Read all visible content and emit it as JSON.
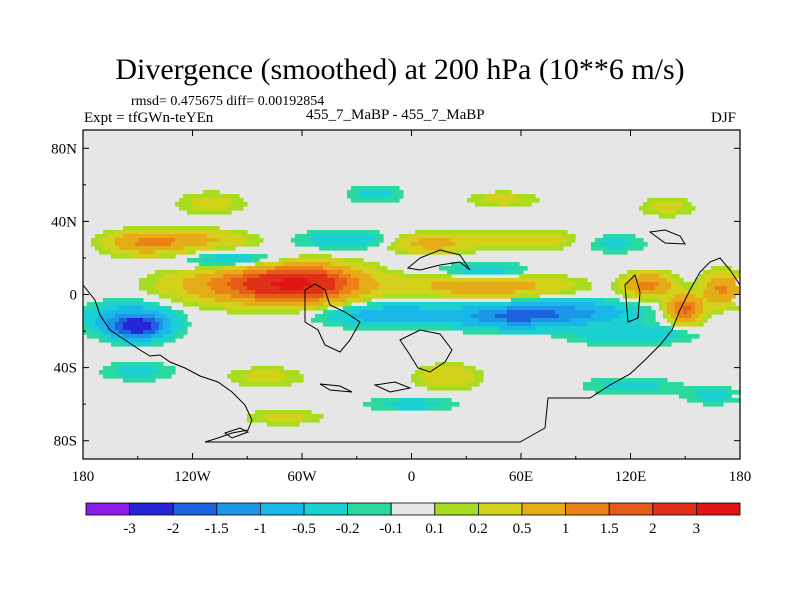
{
  "title": "Divergence (smoothed) at 200 hPa (10**6 m/s)",
  "stats_text": "rmsd= 0.475675 diff= 0.00192854",
  "left_label": "Expt = tfGWn-teYEn",
  "center_label": "455_7_MaBP - 455_7_MaBP",
  "right_label": "DJF",
  "chart_data": {
    "type": "heatmap",
    "projection": "cylindrical-equidistant",
    "variable": "Divergence (smoothed) at 200 hPa",
    "units": "10**6 m/s",
    "xlim": [
      -180,
      180
    ],
    "ylim": [
      -90,
      90
    ],
    "x_ticks": [
      {
        "value": -180,
        "label": "180"
      },
      {
        "value": -120,
        "label": "120W"
      },
      {
        "value": -60,
        "label": "60W"
      },
      {
        "value": 0,
        "label": "0"
      },
      {
        "value": 60,
        "label": "60E"
      },
      {
        "value": 120,
        "label": "120E"
      },
      {
        "value": 180,
        "label": "180"
      }
    ],
    "y_ticks": [
      {
        "value": 80,
        "label": "80N"
      },
      {
        "value": 40,
        "label": "40N"
      },
      {
        "value": 0,
        "label": "0"
      },
      {
        "value": -40,
        "label": "40S"
      },
      {
        "value": -80,
        "label": "80S"
      }
    ],
    "levels": [
      "-3",
      "-2",
      "-1.5",
      "-1",
      "-0.5",
      "-0.2",
      "-0.1",
      "0.1",
      "0.2",
      "0.5",
      "1",
      "1.5",
      "2",
      "3"
    ],
    "colors": [
      "#8a1ee8",
      "#2626d6",
      "#1d62e0",
      "#1c96e6",
      "#1ab8e8",
      "#1ad0d0",
      "#2ad8a0",
      "#e6e6e6",
      "#a8dc20",
      "#d2d21a",
      "#e6ac18",
      "#ea8216",
      "#e65a1a",
      "#e03018",
      "#e01414"
    ],
    "features": [
      {
        "lon": -60,
        "lat": 6,
        "rx": 30,
        "ry": 9,
        "value": 2.6
      },
      {
        "lon": -90,
        "lat": 5,
        "rx": 38,
        "ry": 9,
        "value": 1.2
      },
      {
        "lon": -150,
        "lat": -18,
        "rx": 14,
        "ry": 6,
        "value": -2.2
      },
      {
        "lon": -155,
        "lat": -13,
        "rx": 22,
        "ry": 8,
        "value": -0.8
      },
      {
        "lon": 150,
        "lat": -8,
        "rx": 9,
        "ry": 7,
        "value": 1.6
      },
      {
        "lon": 130,
        "lat": 5,
        "rx": 12,
        "ry": 6,
        "value": 1.2
      },
      {
        "lon": 170,
        "lat": 3,
        "rx": 10,
        "ry": 8,
        "value": 1.1
      },
      {
        "lon": 55,
        "lat": -12,
        "rx": 28,
        "ry": 6,
        "value": -1.5
      },
      {
        "lon": 90,
        "lat": -10,
        "rx": 30,
        "ry": 6,
        "value": -1.0
      },
      {
        "lon": -10,
        "lat": -11,
        "rx": 35,
        "ry": 6,
        "value": -0.8
      },
      {
        "lon": 40,
        "lat": 5,
        "rx": 40,
        "ry": 6,
        "value": 0.9
      },
      {
        "lon": -145,
        "lat": 28,
        "rx": 20,
        "ry": 6,
        "value": 0.9
      },
      {
        "lon": -120,
        "lat": 30,
        "rx": 30,
        "ry": 5,
        "value": 0.6
      },
      {
        "lon": 10,
        "lat": 28,
        "rx": 22,
        "ry": 5,
        "value": 0.7
      },
      {
        "lon": 40,
        "lat": 12,
        "rx": 25,
        "ry": 5,
        "value": -0.5
      },
      {
        "lon": 65,
        "lat": 30,
        "rx": 28,
        "ry": 5,
        "value": 0.4
      },
      {
        "lon": -95,
        "lat": 18,
        "rx": 28,
        "ry": 5,
        "value": -0.5
      },
      {
        "lon": -35,
        "lat": 30,
        "rx": 28,
        "ry": 5,
        "value": -0.4
      },
      {
        "lon": 110,
        "lat": 28,
        "rx": 18,
        "ry": 5,
        "value": -0.3
      },
      {
        "lon": -110,
        "lat": 50,
        "rx": 18,
        "ry": 6,
        "value": 0.3
      },
      {
        "lon": -20,
        "lat": 55,
        "rx": 15,
        "ry": 5,
        "value": -0.3
      },
      {
        "lon": 50,
        "lat": 52,
        "rx": 18,
        "ry": 4,
        "value": 0.3
      },
      {
        "lon": 140,
        "lat": 48,
        "rx": 14,
        "ry": 5,
        "value": 0.3
      },
      {
        "lon": 20,
        "lat": -45,
        "rx": 16,
        "ry": 6,
        "value": 0.5
      },
      {
        "lon": -150,
        "lat": -42,
        "rx": 20,
        "ry": 5,
        "value": -0.3
      },
      {
        "lon": -80,
        "lat": -45,
        "rx": 20,
        "ry": 5,
        "value": 0.3
      },
      {
        "lon": -70,
        "lat": -67,
        "rx": 20,
        "ry": 4,
        "value": 0.3
      },
      {
        "lon": 0,
        "lat": -60,
        "rx": 25,
        "ry": 4,
        "value": -0.3
      },
      {
        "lon": 120,
        "lat": -50,
        "rx": 25,
        "ry": 5,
        "value": -0.3
      },
      {
        "lon": 165,
        "lat": -55,
        "rx": 15,
        "ry": 5,
        "value": -0.3
      },
      {
        "lon": 120,
        "lat": -22,
        "rx": 30,
        "ry": 5,
        "value": -0.5
      }
    ]
  }
}
